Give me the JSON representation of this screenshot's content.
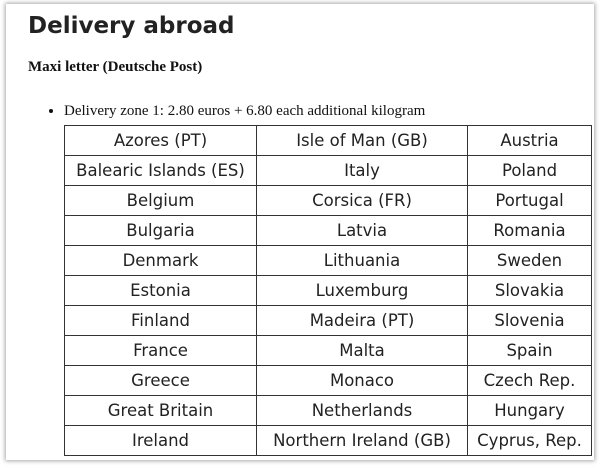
{
  "header": {
    "title": "Delivery abroad",
    "subtitle": "Maxi letter (Deutsche Post)"
  },
  "list": {
    "items": [
      "Delivery zone 1: 2.80 euros + 6.80 each additional kilogram"
    ]
  },
  "table": {
    "rows": [
      [
        "Azores (PT)",
        "Isle of Man (GB)",
        "Austria"
      ],
      [
        "Balearic Islands (ES)",
        "Italy",
        "Poland"
      ],
      [
        "Belgium",
        "Corsica (FR)",
        "Portugal"
      ],
      [
        "Bulgaria",
        "Latvia",
        "Romania"
      ],
      [
        "Denmark",
        "Lithuania",
        "Sweden"
      ],
      [
        "Estonia",
        "Luxemburg",
        "Slovakia"
      ],
      [
        "Finland",
        "Madeira (PT)",
        "Slovenia"
      ],
      [
        "France",
        "Malta",
        "Spain"
      ],
      [
        "Greece",
        "Monaco",
        "Czech Rep."
      ],
      [
        "Great Britain",
        "Netherlands",
        "Hungary"
      ],
      [
        "Ireland",
        "Northern Ireland (GB)",
        "Cyprus, Rep."
      ]
    ]
  }
}
